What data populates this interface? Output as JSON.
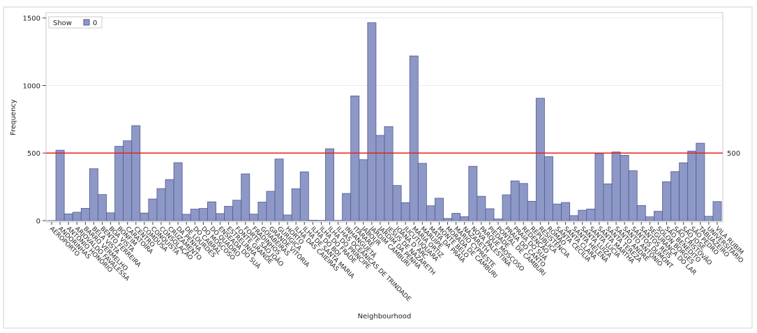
{
  "chart_data": {
    "type": "bar",
    "x_label": "Neighbourhood",
    "y_label": "Frequency",
    "legend_title": "Show",
    "categories": [
      "AEROPORTO",
      "ANDORINHAS",
      "ANTÔNIO HONÓRIO",
      "ARIOVALDO FAVALESSA",
      "BARRO VERMELHO",
      "BELA VISTA",
      "BENTO FERREIRA",
      "BOA VISTA",
      "BONFIM",
      "CARATOÍRA",
      "CENTRO",
      "COMDUSA",
      "CONQUISTA",
      "CONSOLAÇÃO",
      "CRUZAMENTO",
      "DA PENHA",
      "DE LOURDES",
      "DO CABRAL",
      "DO MOSCOSO",
      "DO QUADRO",
      "ENSEADA DO SUÁ",
      "ESTRELINHA",
      "FONTE GRANDE",
      "FORTE SÃO JOÃO",
      "FRADINHOS",
      "GOIABEIRAS",
      "GRANDE VITÓRIA",
      "GURIGICA",
      "HORTO",
      "ILHA DAS CAIEIRAS",
      "ILHA DE SANTA MARIA",
      "ILHA DO BOI",
      "ILHA DO FRADE",
      "ILHA DO PRÍNCIPE",
      "ILHAS OCEÂNICAS DE TRINDADE",
      "INHANGUETÁ",
      "ITARARÉ",
      "JABOUR",
      "JARDIM CAMBURI",
      "JARDIM DA PENHA",
      "JESUS DE NAZARETH",
      "JOANA D´ARC",
      "JUCUTUQUARA",
      "MARIA ORTIZ",
      "MARUÍPE",
      "MATA DA PRAIA",
      "MONTE BELO",
      "MORADA DE CAMBURI",
      "MÁRIO CYPRESTE",
      "NAZARETH",
      "NOVA PALESTINA",
      "PARQUE MOSCOSO",
      "PIEDADE",
      "PONTAL DE CAMBURI",
      "PRAIA DO CANTO",
      "PRAIA DO SUÁ",
      "REDENÇÃO",
      "REPÚBLICA",
      "RESISTÊNCIA",
      "ROMÃO",
      "SANTA CECÍLIA",
      "SANTA CLARA",
      "SANTA HELENA",
      "SANTA LUÍZA",
      "SANTA LÚCIA",
      "SANTA MARTHA",
      "SANTA TEREZA",
      "SANTO ANDRÉ",
      "SANTO ANTÔNIO",
      "SANTOS DUMONT",
      "SANTOS REIS",
      "SEGURANÇA DO LAR",
      "SOLON BORGES",
      "SÃO BENEDITO",
      "SÃO CRISTÓVÃO",
      "SÃO JOSÉ",
      "SÃO PEDRO",
      "TABUAZEIRO",
      "UNIVERSITÁRIO",
      "VILA RUBIM"
    ],
    "series": [
      {
        "name": "0",
        "color": "#8e98c6",
        "values": [
          1,
          521,
          50,
          62,
          91,
          384,
          193,
          58,
          550,
          591,
          703,
          56,
          160,
          237,
          304,
          429,
          47,
          85,
          90,
          139,
          52,
          106,
          151,
          346,
          48,
          137,
          217,
          456,
          42,
          236,
          361,
          3,
          2,
          532,
          2,
          201,
          923,
          451,
          1465,
          631,
          696,
          260,
          133,
          1219,
          424,
          110,
          166,
          16,
          54,
          29,
          402,
          180,
          88,
          12,
          191,
          294,
          275,
          143,
          906,
          474,
          123,
          134,
          37,
          77,
          86,
          496,
          272,
          508,
          484,
          369,
          112,
          28,
          69,
          288,
          363,
          428,
          515,
          573,
          32,
          141
        ]
      }
    ],
    "ylim": [
      0,
      1540
    ],
    "yticks": [
      0,
      500,
      1000,
      1500
    ],
    "grid": true,
    "refline": 500,
    "refline_color": "#e8201e",
    "legend_position": "upper left"
  }
}
